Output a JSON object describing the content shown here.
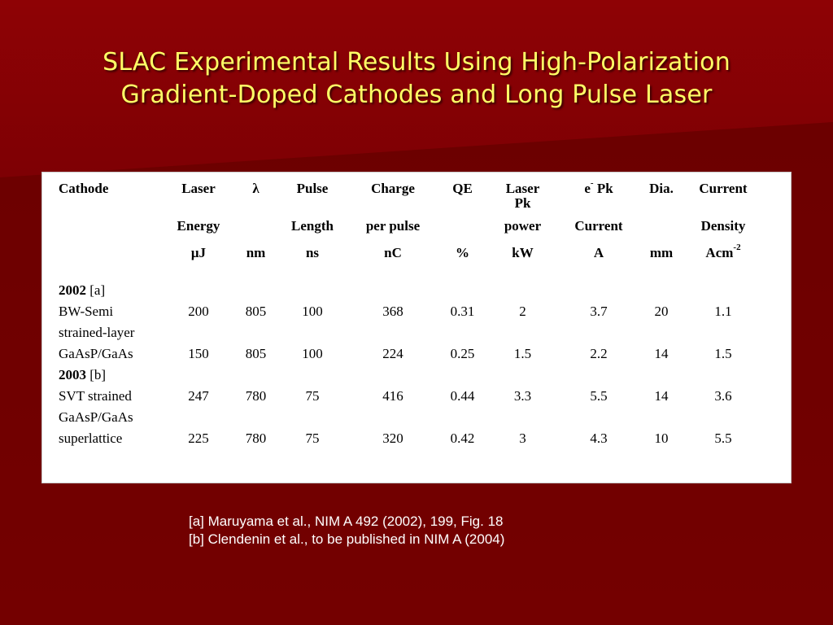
{
  "slide": {
    "title_line1": "SLAC Experimental Results Using High-Polarization",
    "title_line2": "Gradient-Doped Cathodes and Long Pulse Laser",
    "colors": {
      "background": "#7a0000",
      "title": "#ffff66",
      "panel": "#ffffff",
      "reference_text": "#ffffff"
    }
  },
  "table": {
    "header_row1": [
      "Cathode",
      "Laser",
      "λ",
      "Pulse",
      "Charge",
      "QE",
      "Laser Pk",
      "e",
      "Dia.",
      "Current"
    ],
    "header_row1_sup": "-",
    "header_row1_suffix": " Pk",
    "header_row2": [
      "",
      "Energy",
      "",
      "Length",
      "per pulse",
      "",
      "power",
      "Current",
      "",
      "Density"
    ],
    "header_row3": [
      "",
      "μJ",
      "nm",
      "ns",
      "nC",
      "%",
      "kW",
      "A",
      "mm",
      "Acm"
    ],
    "header_row3_sup": "-2",
    "sections": [
      {
        "year": "2002",
        "ref": " [a]",
        "rows": [
          {
            "label": "BW-Semi",
            "values": [
              "200",
              "805",
              "100",
              "368",
              "0.31",
              "2",
              "3.7",
              "20",
              "1.1"
            ]
          },
          {
            "label": "strained-layer",
            "values": [
              "",
              "",
              "",
              "",
              "",
              "",
              "",
              "",
              ""
            ]
          },
          {
            "label": "GaAsP/GaAs",
            "values": [
              "150",
              "805",
              "100",
              "224",
              "0.25",
              "1.5",
              "2.2",
              "14",
              "1.5"
            ]
          }
        ]
      },
      {
        "year": "2003",
        "ref": " [b]",
        "rows": [
          {
            "label": "SVT strained",
            "values": [
              "247",
              "780",
              "75",
              "416",
              "0.44",
              "3.3",
              "5.5",
              "14",
              "3.6"
            ]
          },
          {
            "label": "GaAsP/GaAs",
            "values": [
              "",
              "",
              "",
              "",
              "",
              "",
              "",
              "",
              ""
            ]
          },
          {
            "label": "superlattice",
            "values": [
              "225",
              "780",
              "75",
              "320",
              "0.42",
              "3",
              "4.3",
              "10",
              "5.5"
            ]
          }
        ]
      }
    ]
  },
  "references": [
    "[a] Maruyama et al., NIM A 492 (2002), 199, Fig. 18",
    "[b] Clendenin et al., to be published in NIM A  (2004)"
  ]
}
